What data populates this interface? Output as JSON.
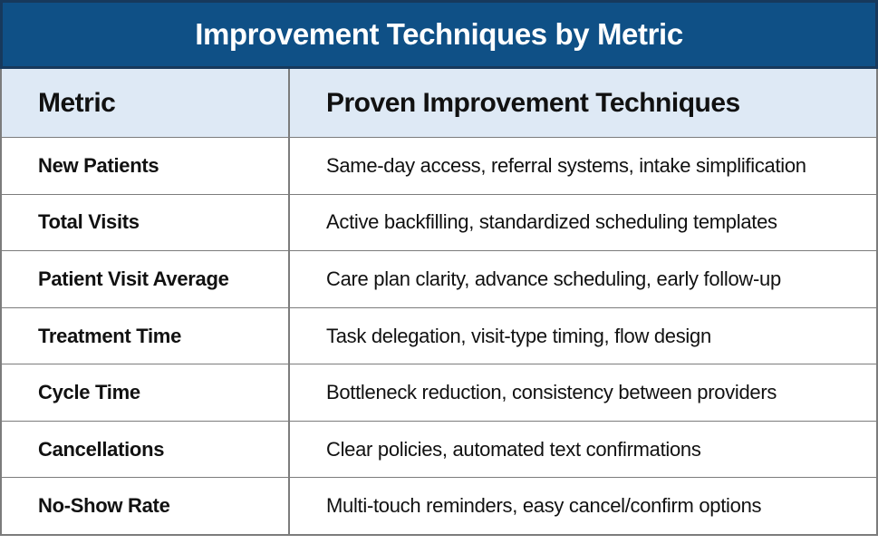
{
  "table": {
    "title": "Improvement Techniques by Metric",
    "columns": [
      "Metric",
      "Proven Improvement Techniques"
    ],
    "rows": [
      {
        "metric": "New Patients",
        "techniques": "Same-day access, referral systems, intake simplification"
      },
      {
        "metric": "Total Visits",
        "techniques": "Active backfilling, standardized scheduling templates"
      },
      {
        "metric": "Patient Visit Average",
        "techniques": "Care plan clarity, advance scheduling, early follow-up"
      },
      {
        "metric": "Treatment Time",
        "techniques": "Task delegation, visit-type timing, flow design"
      },
      {
        "metric": "Cycle Time",
        "techniques": "Bottleneck reduction, consistency between providers"
      },
      {
        "metric": "Cancellations",
        "techniques": "Clear policies, automated text confirmations"
      },
      {
        "metric": "No-Show Rate",
        "techniques": "Multi-touch reminders, easy cancel/confirm options"
      }
    ]
  },
  "colors": {
    "navy": "#0F5086",
    "navy-dark": "#17395C",
    "light-blue": "#DEE9F5",
    "line-gray": "#7C7C7C",
    "text": "#111111",
    "title-text": "#FFFFFF"
  }
}
